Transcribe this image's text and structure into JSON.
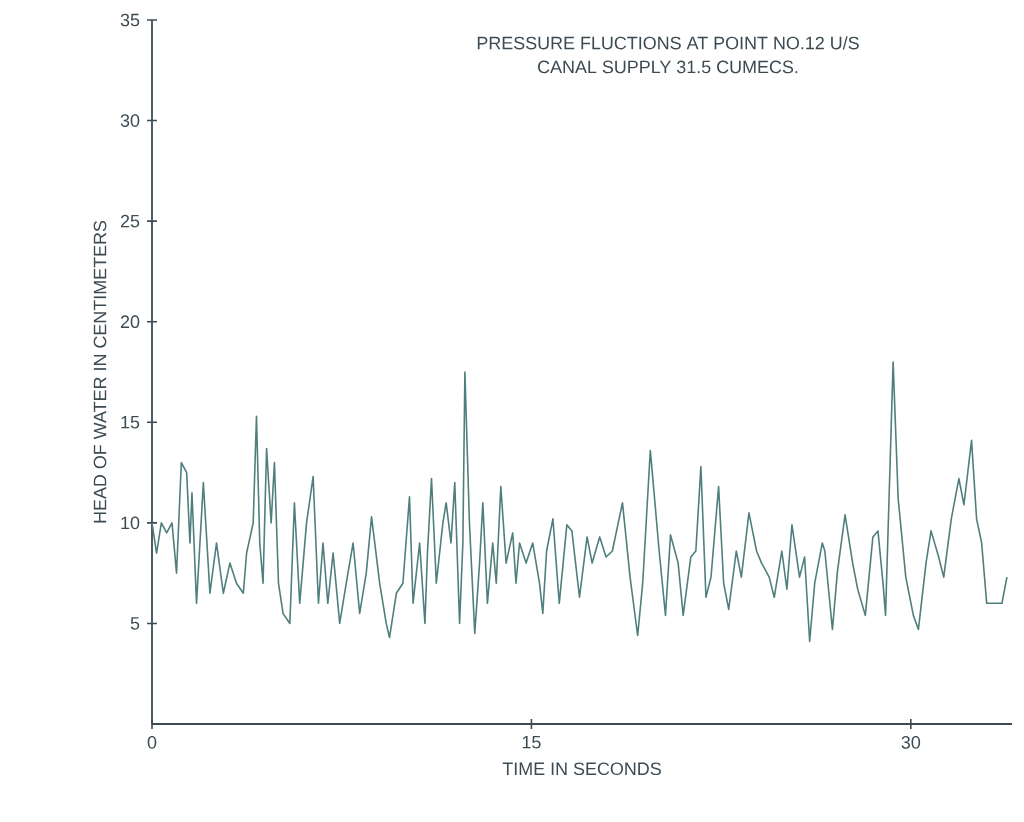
{
  "chart_data": {
    "type": "line",
    "title": "PRESSURE FLUCTIONS AT POINT NO.12 U/S",
    "subtitle": "CANAL SUPPLY 31.5 CUMECS.",
    "xlabel": "TIME IN SECONDS",
    "ylabel": "HEAD OF WATER IN CENTIMETERS",
    "xlim": [
      0,
      34
    ],
    "ylim": [
      0,
      35
    ],
    "xticks": [
      0,
      15,
      30
    ],
    "yticks": [
      5,
      10,
      15,
      20,
      25,
      30,
      35
    ],
    "marker": "none",
    "line_style": "solid",
    "series": [
      {
        "color": "#4f7f7c",
        "x": [
          0,
          0.18,
          0.37,
          0.58,
          0.79,
          0.97,
          1.16,
          1.37,
          1.5,
          1.58,
          1.76,
          2.03,
          2.29,
          2.55,
          2.82,
          3.08,
          3.34,
          3.61,
          3.74,
          4.0,
          4.13,
          4.26,
          4.39,
          4.53,
          4.71,
          4.84,
          5.0,
          5.18,
          5.45,
          5.63,
          5.84,
          6.11,
          6.37,
          6.58,
          6.76,
          6.95,
          7.16,
          7.42,
          7.68,
          7.95,
          8.21,
          8.47,
          8.68,
          9.0,
          9.26,
          9.39,
          9.66,
          9.92,
          10.18,
          10.32,
          10.58,
          10.79,
          10.89,
          11.05,
          11.24,
          11.5,
          11.63,
          11.82,
          11.97,
          12.16,
          12.29,
          12.37,
          12.55,
          12.76,
          12.95,
          13.08,
          13.26,
          13.47,
          13.61,
          13.79,
          14.0,
          14.26,
          14.39,
          14.53,
          14.79,
          15.05,
          15.32,
          15.45,
          15.6,
          15.85,
          16.1,
          16.4,
          16.6,
          16.9,
          17.2,
          17.4,
          17.7,
          17.95,
          18.2,
          18.6,
          18.9,
          19.2,
          19.4,
          19.7,
          19.8,
          20.05,
          20.3,
          20.5,
          20.8,
          21.0,
          21.3,
          21.5,
          21.7,
          21.9,
          22.1,
          22.4,
          22.6,
          22.8,
          23.1,
          23.3,
          23.6,
          23.9,
          24.1,
          24.4,
          24.6,
          24.9,
          25.1,
          25.3,
          25.6,
          25.8,
          26.0,
          26.2,
          26.5,
          26.6,
          26.9,
          27.1,
          27.4,
          27.7,
          27.9,
          28.2,
          28.5,
          28.7,
          28.9,
          29.0,
          29.3,
          29.5,
          29.8,
          30.1,
          30.3,
          30.6,
          30.8,
          31.1,
          31.3,
          31.6,
          31.9,
          32.1,
          32.4,
          32.6,
          32.8,
          33.0,
          33.6,
          33.8
        ],
        "values": [
          10,
          8.5,
          10,
          9.5,
          10,
          7.5,
          13,
          12.5,
          9,
          11.5,
          6,
          12,
          6.5,
          9,
          6.5,
          8,
          7,
          6.5,
          8.5,
          10,
          15.3,
          9,
          7,
          13.7,
          10,
          13,
          7,
          5.5,
          5,
          11,
          6,
          10,
          12.3,
          6,
          9,
          6,
          8.5,
          5,
          7,
          9,
          5.5,
          7.5,
          10.3,
          7,
          5,
          4.3,
          6.5,
          7,
          11.3,
          6,
          9,
          5,
          8.5,
          12.2,
          7,
          10,
          11,
          9,
          12,
          5,
          9,
          17.5,
          10,
          4.5,
          8,
          11,
          6,
          9,
          7,
          11.8,
          8,
          9.5,
          7,
          9,
          8,
          9,
          7,
          5.5,
          8.6,
          10.2,
          6,
          9.9,
          9.6,
          6.3,
          9.3,
          8,
          9.3,
          8.3,
          8.6,
          11,
          7.3,
          4.4,
          7,
          13.6,
          12.2,
          8.6,
          5.4,
          9.4,
          8,
          5.4,
          8.3,
          8.6,
          12.8,
          6.3,
          7.3,
          11.8,
          7,
          5.7,
          8.6,
          7.3,
          10.5,
          8.6,
          8,
          7.3,
          6.3,
          8.6,
          6.7,
          9.9,
          7.3,
          8.3,
          4.1,
          7,
          9,
          8.6,
          4.7,
          7.6,
          10.4,
          8,
          6.7,
          5.4,
          9.3,
          9.6,
          7,
          5.4,
          18,
          11.2,
          7.3,
          5.4,
          4.7,
          8,
          9.6,
          8.3,
          7.3,
          10.2,
          12.2,
          10.9,
          14.1,
          10.2,
          9,
          6,
          6,
          7.3
        ]
      }
    ]
  }
}
